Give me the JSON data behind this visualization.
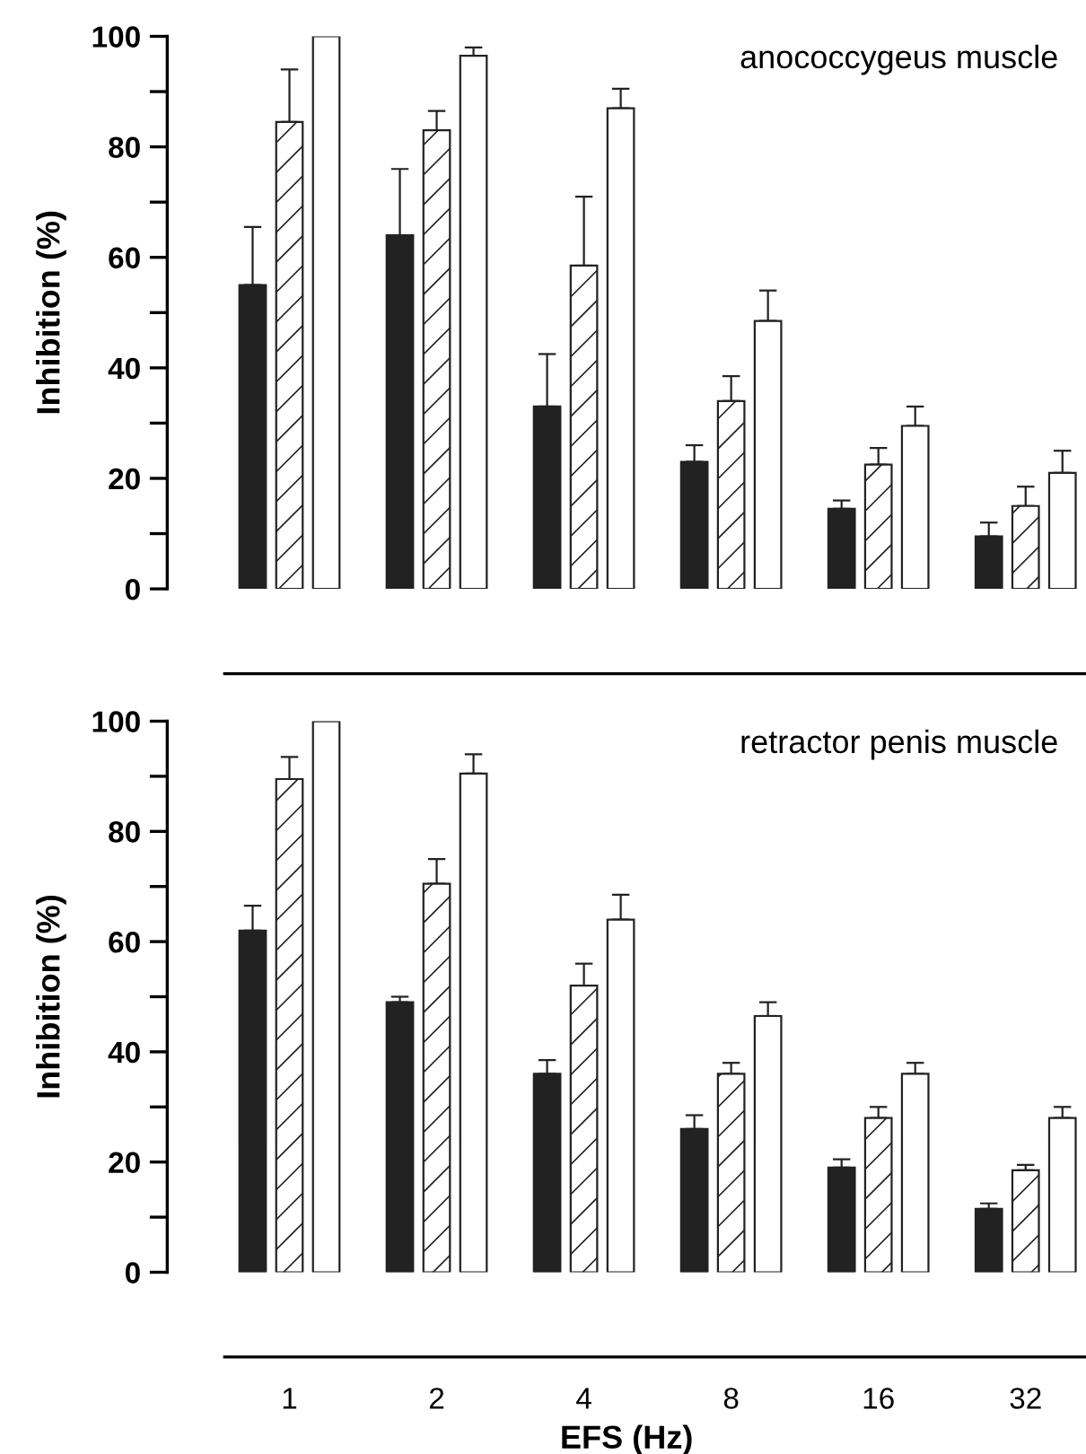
{
  "chart_data": [
    {
      "type": "bar",
      "title": "anococcygeus muscle",
      "ylabel": "Inhibition (%)",
      "categories": [
        "1",
        "2",
        "4",
        "8",
        "16",
        "32"
      ],
      "ylim": [
        0,
        100
      ],
      "yticks": [
        0,
        20,
        40,
        60,
        80,
        100
      ],
      "tick_labels": "y",
      "grid": false,
      "legend": false,
      "series": [
        {
          "color": "#222222",
          "values": [
            55,
            64,
            33,
            23,
            14.5,
            9.5
          ],
          "errors": [
            [
              55,
              65.5
            ],
            [
              64,
              76
            ],
            [
              33,
              42.5
            ],
            [
              23,
              26
            ],
            [
              14.5,
              16
            ],
            [
              9.5,
              12
            ]
          ]
        },
        {
          "color": "#222222",
          "values": [
            84.5,
            83,
            58.5,
            34,
            22.5,
            15
          ],
          "errors": [
            [
              84.5,
              94
            ],
            [
              83,
              86.5
            ],
            [
              58.5,
              71
            ],
            [
              34,
              38.5
            ],
            [
              22.5,
              25.5
            ],
            [
              15,
              18.5
            ]
          ]
        },
        {
          "color": "#ffffff",
          "values": [
            100,
            96.5,
            87,
            48.5,
            29.5,
            21
          ],
          "errors": [
            null,
            [
              96.5,
              98
            ],
            [
              87,
              90.5
            ],
            [
              48.5,
              54
            ],
            [
              29.5,
              33
            ],
            [
              21,
              25
            ]
          ]
        }
      ]
    },
    {
      "type": "bar",
      "title": "retractor penis muscle",
      "ylabel": "Inhibition (%)",
      "xlabel": "EFS (Hz)",
      "categories": [
        "1",
        "2",
        "4",
        "8",
        "16",
        "32"
      ],
      "ylim": [
        0,
        100
      ],
      "yticks": [
        0,
        20,
        40,
        60,
        80,
        100
      ],
      "grid": false,
      "legend": false,
      "series": [
        {
          "color": "#222222",
          "values": [
            62,
            49,
            36,
            26,
            19,
            11.5
          ],
          "errors": [
            [
              62,
              66.5
            ],
            [
              49,
              50
            ],
            [
              36,
              38.5
            ],
            [
              26,
              28.5
            ],
            [
              19,
              20.5
            ],
            [
              11.5,
              12.5
            ]
          ]
        },
        {
          "color": "#222222",
          "values": [
            89.5,
            70.5,
            52,
            36,
            28,
            18.5
          ],
          "errors": [
            [
              89.5,
              93.5
            ],
            [
              70.5,
              75
            ],
            [
              52,
              56
            ],
            [
              36,
              38
            ],
            [
              28,
              30
            ],
            [
              18.5,
              19.5
            ]
          ]
        },
        {
          "color": "#ffffff",
          "values": [
            100,
            90.5,
            64,
            46.5,
            36,
            28
          ],
          "errors": [
            null,
            [
              90.5,
              94
            ],
            [
              64,
              68.5
            ],
            [
              46.5,
              49
            ],
            [
              36,
              38
            ],
            [
              28,
              30
            ]
          ]
        }
      ]
    }
  ]
}
